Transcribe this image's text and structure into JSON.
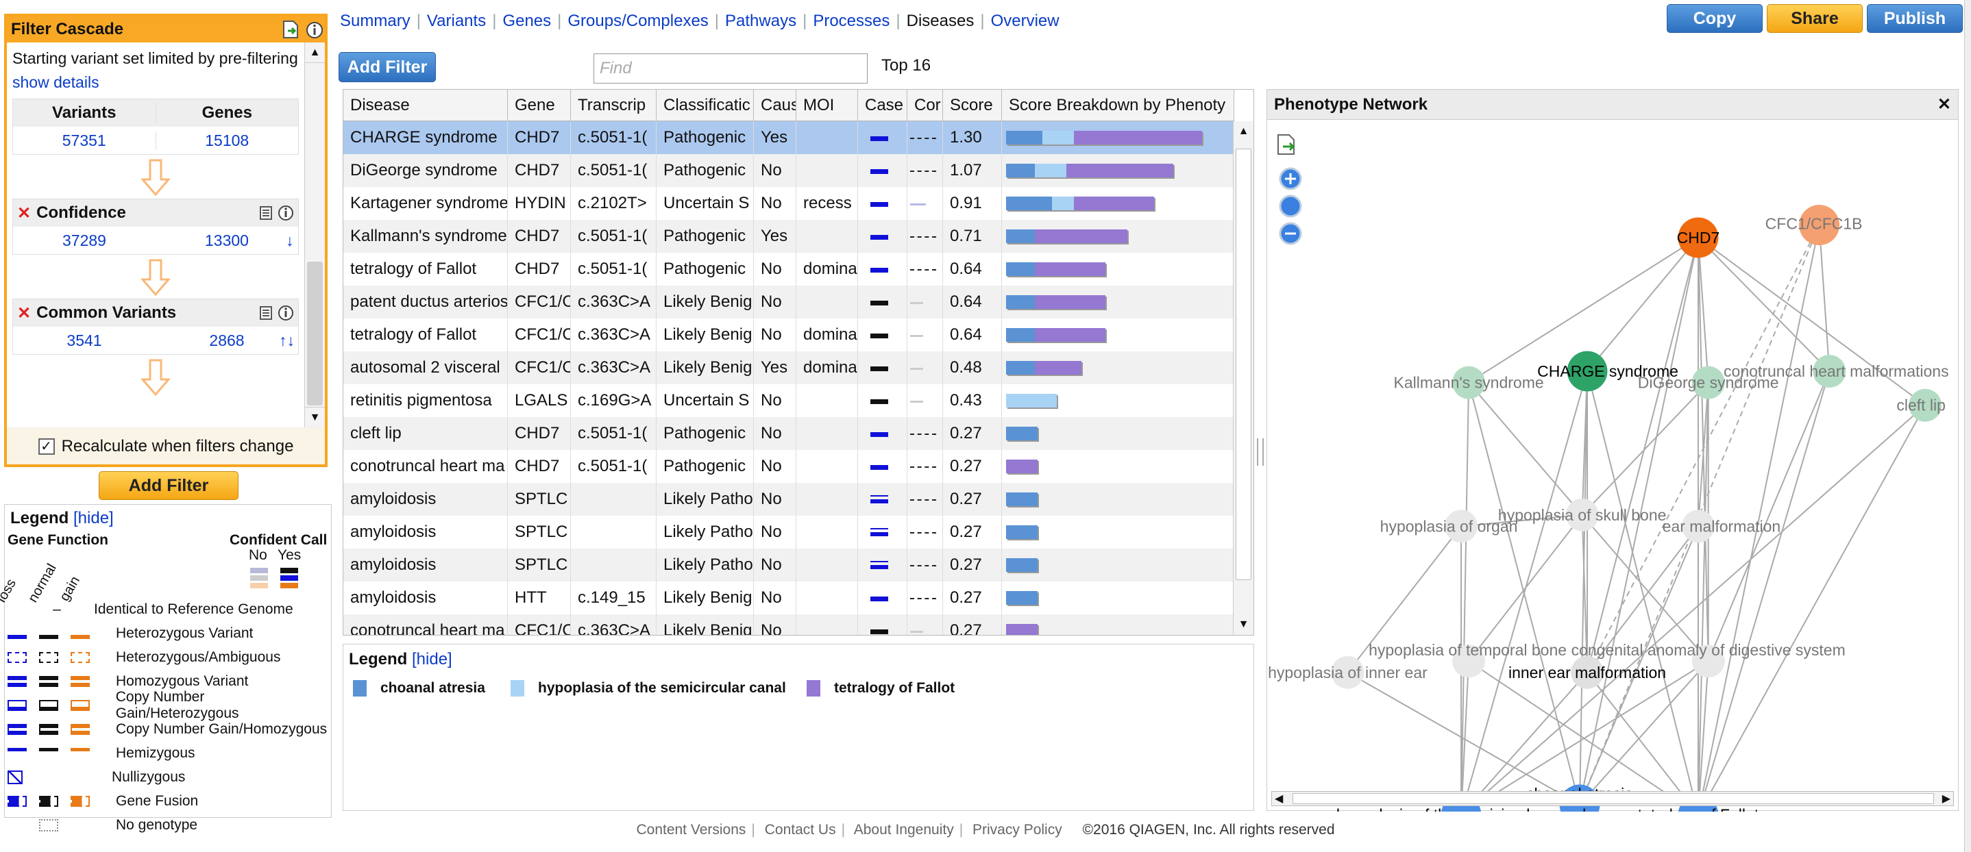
{
  "nav": {
    "tabs": [
      "Summary",
      "Variants",
      "Genes",
      "Groups/Complexes",
      "Pathways",
      "Processes",
      "Diseases",
      "Overview"
    ],
    "active": "Diseases"
  },
  "actions": {
    "copy": "Copy",
    "share": "Share",
    "publish": "Publish"
  },
  "filter_cascade": {
    "title": "Filter Cascade",
    "intro": "Starting variant set limited by pre-filtering",
    "show_details": "show details",
    "col_variants": "Variants",
    "col_genes": "Genes",
    "start_variants": "57351",
    "start_genes": "15108",
    "steps": [
      {
        "name": "Confidence",
        "variants": "37289",
        "genes": "13300",
        "arrows": "↓"
      },
      {
        "name": "Common Variants",
        "variants": "3541",
        "genes": "2868",
        "arrows": "↑↓"
      }
    ],
    "recalc_label": "Recalculate when filters change",
    "recalc_checked": "✓",
    "add_filter": "Add Filter"
  },
  "legend_left": {
    "title": "Legend",
    "hide": "[hide]",
    "gene_function": "Gene Function",
    "confident_call": "Confident Call",
    "no": "No",
    "yes": "Yes",
    "axis": [
      "loss",
      "normal",
      "gain"
    ],
    "dash": "–",
    "rows": [
      "Identical to Reference Genome",
      "Heterozygous Variant",
      "Heterozygous/Ambiguous",
      "Homozygous Variant",
      "Copy Number Gain/Heterozygous",
      "Copy Number Gain/Homozygous",
      "Hemizygous",
      "Nullizygous",
      "Gene Fusion",
      "No genotype"
    ]
  },
  "toolbar": {
    "add_filter": "Add Filter",
    "find_placeholder": "Find",
    "top": "Top 16"
  },
  "table": {
    "headers": [
      "Disease",
      "Gene",
      "Transcrip",
      "Classificatic",
      "Caus",
      "MOI",
      "Case",
      "Cor",
      "Score",
      "Score Breakdown by Phenoty"
    ],
    "rows": [
      {
        "disease": "CHARGE syndrome",
        "gene": "CHD7",
        "tx": "c.5051-1(",
        "cls": "Pathogenic",
        "caus": "Yes",
        "moi": "",
        "score": "1.30"
      },
      {
        "disease": "DiGeorge syndrome",
        "gene": "CHD7",
        "tx": "c.5051-1(",
        "cls": "Pathogenic",
        "caus": "No",
        "moi": "",
        "score": "1.07"
      },
      {
        "disease": "Kartagener syndrome",
        "gene": "HYDIN",
        "tx": "c.2102T>",
        "cls": "Uncertain S",
        "caus": "No",
        "moi": "recess",
        "score": "0.91"
      },
      {
        "disease": "Kallmann's syndrome",
        "gene": "CHD7",
        "tx": "c.5051-1(",
        "cls": "Pathogenic",
        "caus": "Yes",
        "moi": "",
        "score": "0.71"
      },
      {
        "disease": "tetralogy of Fallot",
        "gene": "CHD7",
        "tx": "c.5051-1(",
        "cls": "Pathogenic",
        "caus": "No",
        "moi": "domina",
        "score": "0.64"
      },
      {
        "disease": "patent ductus arterios",
        "gene": "CFC1/C",
        "tx": "c.363C>A",
        "cls": "Likely Benig",
        "caus": "No",
        "moi": "",
        "score": "0.64"
      },
      {
        "disease": "tetralogy of Fallot",
        "gene": "CFC1/C",
        "tx": "c.363C>A",
        "cls": "Likely Benig",
        "caus": "No",
        "moi": "domina",
        "score": "0.64"
      },
      {
        "disease": "autosomal 2 visceral",
        "gene": "CFC1/C",
        "tx": "c.363C>A",
        "cls": "Likely Benig",
        "caus": "Yes",
        "moi": "domina",
        "score": "0.48"
      },
      {
        "disease": "retinitis pigmentosa",
        "gene": "LGALS",
        "tx": "c.169G>A",
        "cls": "Uncertain S",
        "caus": "No",
        "moi": "",
        "score": "0.43"
      },
      {
        "disease": "cleft lip",
        "gene": "CHD7",
        "tx": "c.5051-1(",
        "cls": "Pathogenic",
        "caus": "No",
        "moi": "",
        "score": "0.27"
      },
      {
        "disease": "conotruncal heart ma",
        "gene": "CHD7",
        "tx": "c.5051-1(",
        "cls": "Pathogenic",
        "caus": "No",
        "moi": "",
        "score": "0.27"
      },
      {
        "disease": "amyloidosis",
        "gene": "SPTLC",
        "tx": "",
        "cls": "Likely Patho",
        "caus": "No",
        "moi": "",
        "score": "0.27"
      },
      {
        "disease": "amyloidosis",
        "gene": "SPTLC",
        "tx": "",
        "cls": "Likely Patho",
        "caus": "No",
        "moi": "",
        "score": "0.27"
      },
      {
        "disease": "amyloidosis",
        "gene": "SPTLC",
        "tx": "",
        "cls": "Likely Patho",
        "caus": "No",
        "moi": "",
        "score": "0.27"
      },
      {
        "disease": "amyloidosis",
        "gene": "HTT",
        "tx": "c.149_15",
        "cls": "Likely Benig",
        "caus": "No",
        "moi": "",
        "score": "0.27"
      },
      {
        "disease": "conotruncal heart ma",
        "gene": "CFC1/C",
        "tx": "c.363C>A",
        "cls": "Likely Benig",
        "caus": "No",
        "moi": "",
        "score": "0.27"
      }
    ],
    "breakdown": [
      [
        0.53,
        0.15,
        0.13
      ],
      [
        0.44,
        0.12,
        0.13
      ],
      [
        0.33,
        0.19,
        0.09
      ],
      [
        0.38,
        0.12,
        0
      ],
      [
        0.29,
        0.12,
        0
      ],
      [
        0.29,
        0.12,
        0
      ],
      [
        0.29,
        0.12,
        0
      ],
      [
        0.19,
        0.12,
        0
      ],
      [
        0,
        0,
        0.21
      ],
      [
        0,
        0.13,
        0
      ],
      [
        0.13,
        0,
        0
      ],
      [
        0,
        0.13,
        0
      ],
      [
        0,
        0.13,
        0
      ],
      [
        0,
        0.13,
        0
      ],
      [
        0,
        0.13,
        0
      ],
      [
        0.13,
        0,
        0
      ]
    ],
    "breakdown_order": [
      "tetralogy of Fallot",
      "choanal atresia",
      "hypoplasia of the semicircular canal"
    ]
  },
  "legend_bottom": {
    "title": "Legend",
    "hide": "[hide]",
    "items": [
      {
        "label": "choanal atresia",
        "color": "#5a92d4"
      },
      {
        "label": "hypoplasia of the semicircular canal",
        "color": "#a9d3f5"
      },
      {
        "label": "tetralogy of Fallot",
        "color": "#9478d2"
      }
    ]
  },
  "network": {
    "title": "Phenotype Network",
    "close": "✕",
    "nodes": [
      "CHD7",
      "CFC1/CFC1B",
      "Kallmann's syndrome",
      "CHARGE syndrome",
      "DiGeorge syndrome",
      "conotruncal heart malformations",
      "cleft lip",
      "hypoplasia of skull bone",
      "hypoplasia of organ",
      "ear malformation",
      "hypoplasia of inner ear",
      "hypoplasia of temporal bone",
      "inner ear malformation",
      "congenital anomaly of digestive system",
      "hypoplasia of the semicircular canal",
      "choanal atresia",
      "tetralogy of Fallot"
    ]
  },
  "footer": {
    "links": [
      "Content Versions",
      "Contact Us",
      "About Ingenuity",
      "Privacy Policy"
    ],
    "copyright": "©2016 QIAGEN, Inc. All rights reserved"
  }
}
